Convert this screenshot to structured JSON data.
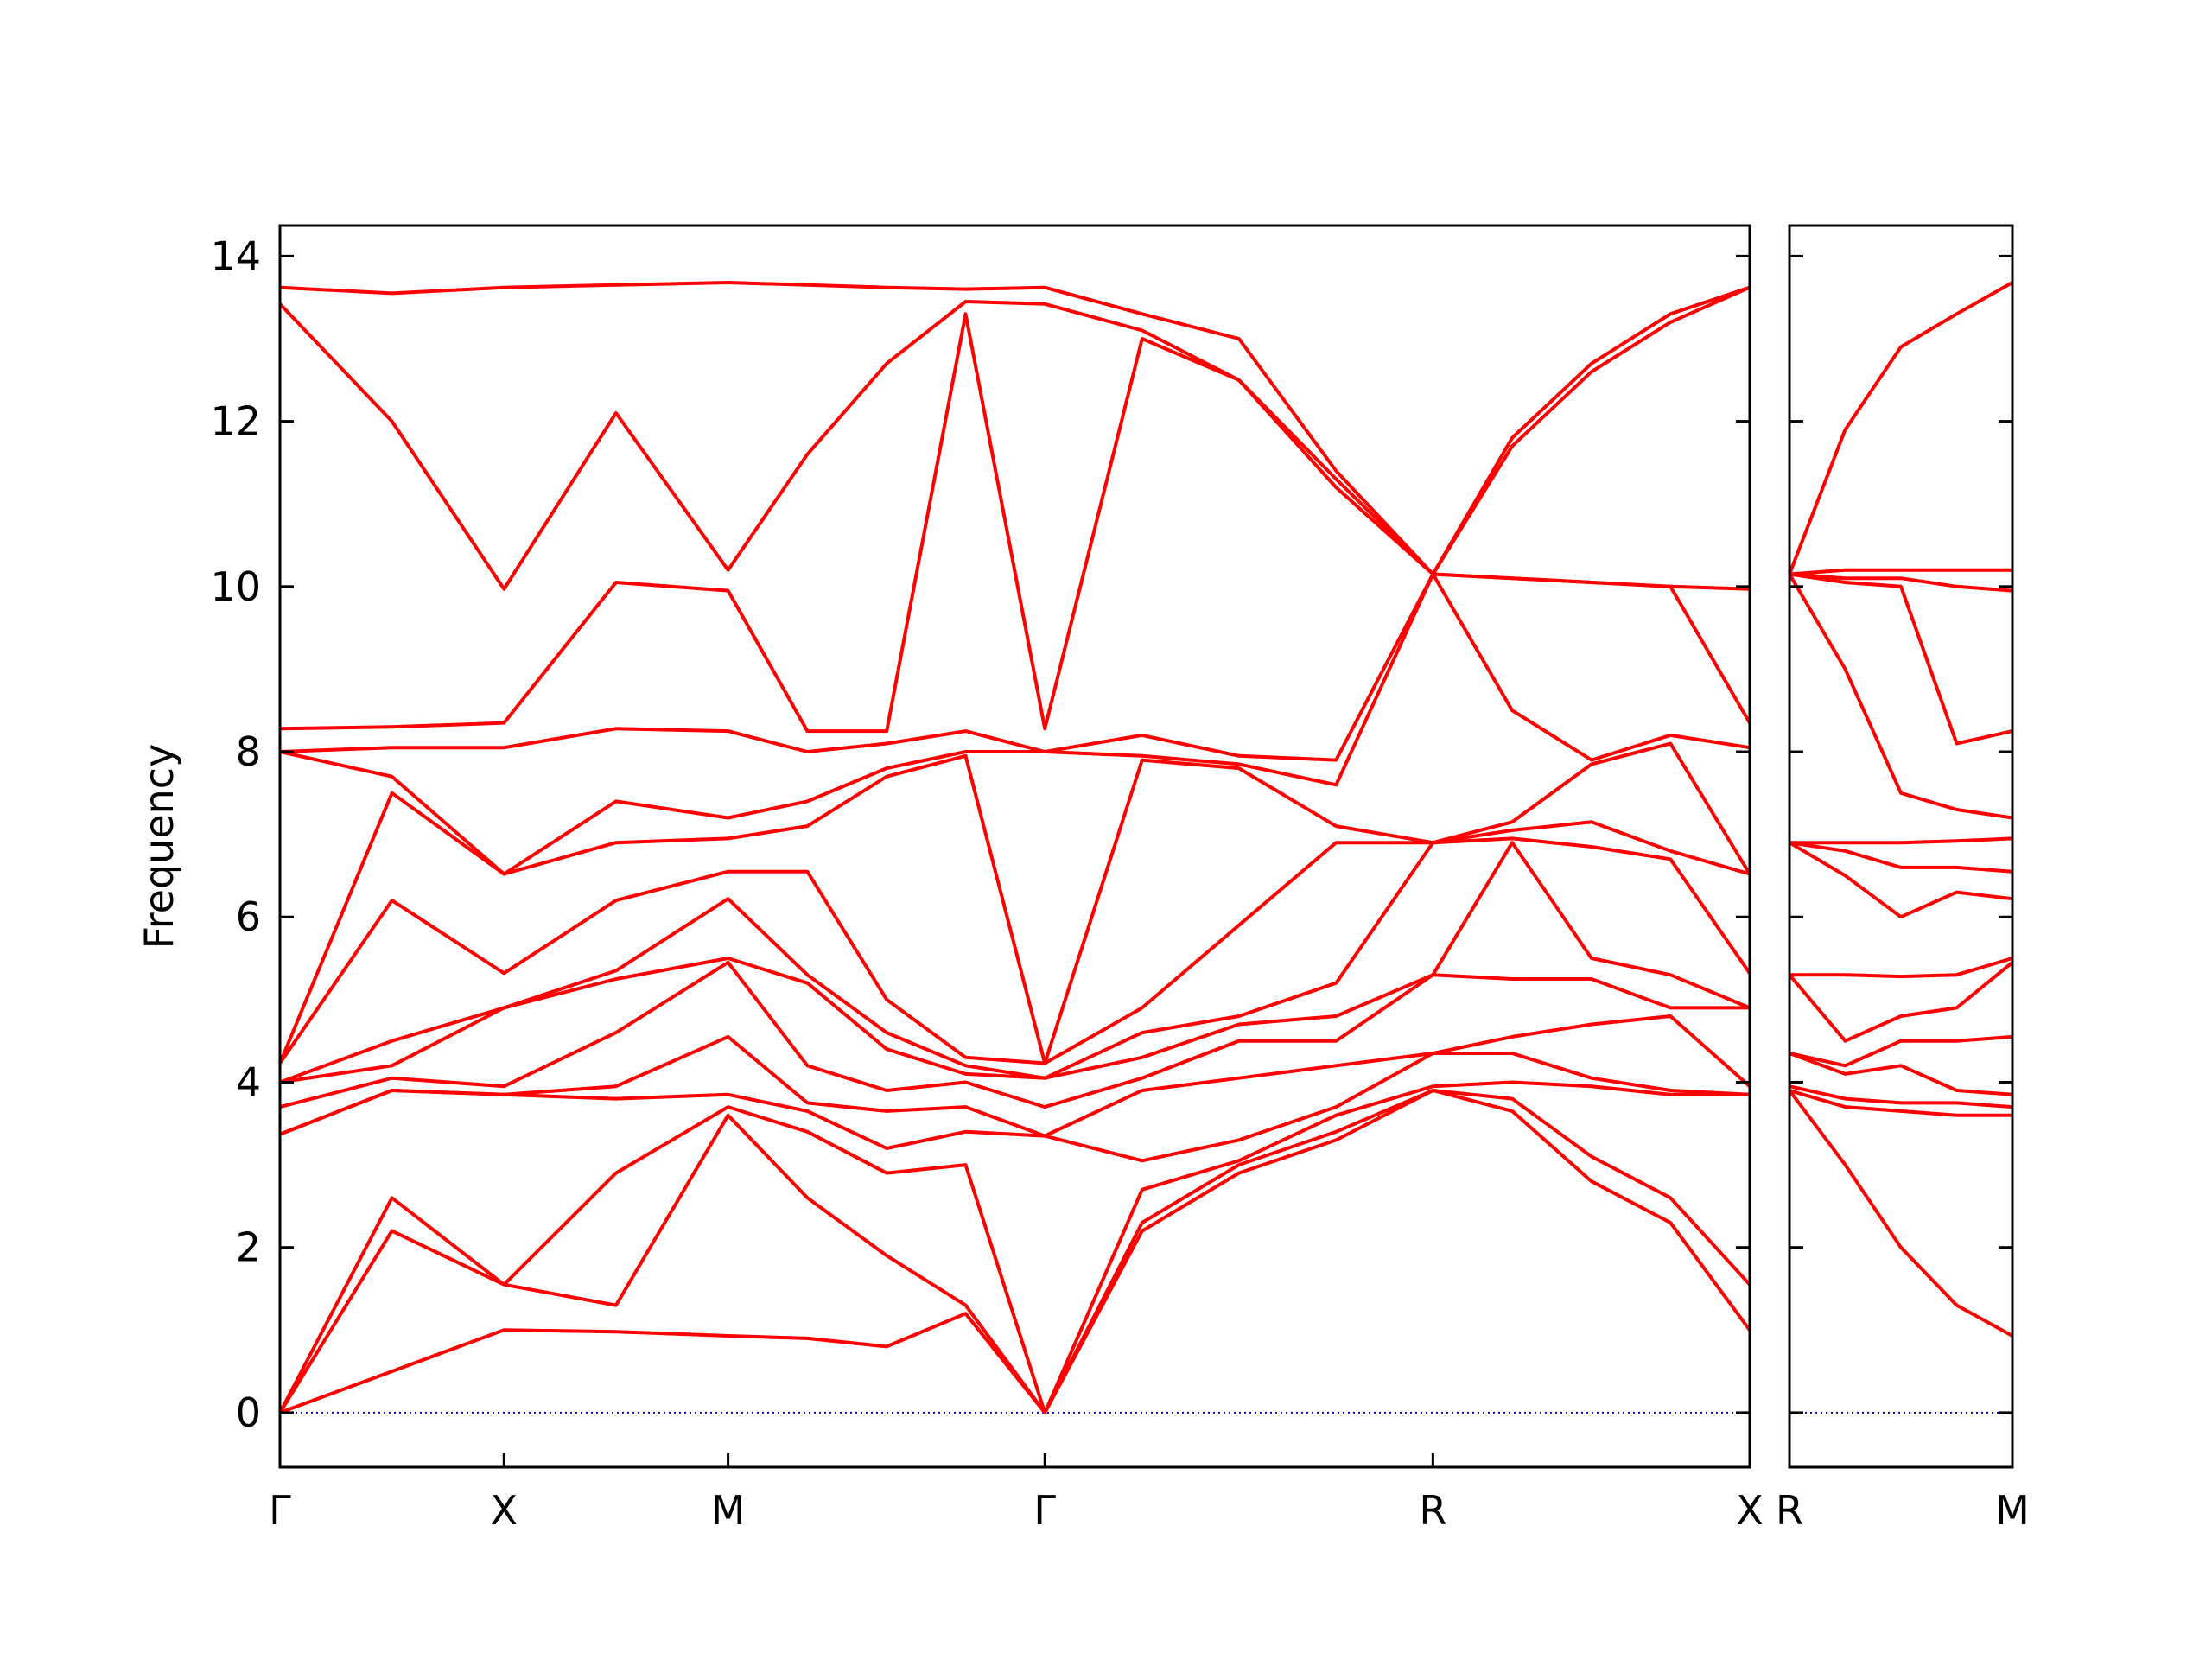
{
  "chart_data": [
    {
      "type": "line",
      "ylabel": "Frequency",
      "color": "#ff0000",
      "hline": 0,
      "hline_color": "#0000cd",
      "xlim": [
        0,
        3.28
      ],
      "ylim": [
        -0.66,
        14.37
      ],
      "yticks": [
        0,
        2,
        4,
        6,
        8,
        10,
        12,
        14
      ],
      "xticks": [
        {
          "value": 0,
          "label": "Γ"
        },
        {
          "value": 0.5,
          "label": "X"
        },
        {
          "value": 1.0,
          "label": "M"
        },
        {
          "value": 1.707,
          "label": "Γ"
        },
        {
          "value": 2.573,
          "label": "R"
        },
        {
          "value": 3.28,
          "label": "X"
        }
      ],
      "x": [
        0,
        0.25,
        0.5,
        0.75,
        1.0,
        1.177,
        1.354,
        1.53,
        1.707,
        1.924,
        2.14,
        2.357,
        2.573,
        2.75,
        2.927,
        3.103,
        3.28
      ],
      "series": [
        {
          "values": [
            0,
            0.5,
            1.0,
            0.98,
            0.93,
            0.9,
            0.8,
            1.2,
            0,
            2.2,
            2.9,
            3.3,
            3.9,
            3.65,
            2.8,
            2.3,
            1.0
          ]
        },
        {
          "values": [
            0,
            2.2,
            1.55,
            1.3,
            3.6,
            2.6,
            1.9,
            1.3,
            0,
            2.3,
            3.0,
            3.4,
            3.9,
            3.8,
            3.1,
            2.6,
            1.55
          ]
        },
        {
          "values": [
            0,
            2.6,
            1.55,
            2.9,
            3.7,
            3.4,
            2.9,
            3.0,
            0,
            2.7,
            3.05,
            3.6,
            3.95,
            4.0,
            3.95,
            3.85,
            3.85
          ]
        },
        {
          "values": [
            3.37,
            3.9,
            3.85,
            3.8,
            3.85,
            3.65,
            3.2,
            3.4,
            3.35,
            3.05,
            3.3,
            3.7,
            4.35,
            4.35,
            4.05,
            3.9,
            3.85
          ]
        },
        {
          "values": [
            3.37,
            3.9,
            3.85,
            3.95,
            4.55,
            3.75,
            3.65,
            3.7,
            3.35,
            3.9,
            4.05,
            4.2,
            4.35,
            4.55,
            4.7,
            4.8,
            3.95
          ]
        },
        {
          "values": [
            3.7,
            4.05,
            3.95,
            4.6,
            5.45,
            4.2,
            3.9,
            4.0,
            3.7,
            4.05,
            4.5,
            4.5,
            5.3,
            5.25,
            5.25,
            4.9,
            4.9
          ]
        },
        {
          "values": [
            4.0,
            4.2,
            4.9,
            5.25,
            5.5,
            5.2,
            4.4,
            4.1,
            4.05,
            4.3,
            4.7,
            4.8,
            5.3,
            6.9,
            5.5,
            5.3,
            4.9
          ]
        },
        {
          "values": [
            4.0,
            4.5,
            4.9,
            5.35,
            6.22,
            5.3,
            4.6,
            4.2,
            4.05,
            4.6,
            4.8,
            5.2,
            6.9,
            6.95,
            6.85,
            6.7,
            5.32
          ]
        },
        {
          "values": [
            4.23,
            6.2,
            5.32,
            6.2,
            6.55,
            6.55,
            5.0,
            4.3,
            4.23,
            4.9,
            5.9,
            6.9,
            6.9,
            7.05,
            7.15,
            6.8,
            6.52
          ]
        },
        {
          "values": [
            4.23,
            7.5,
            6.52,
            6.9,
            6.95,
            7.1,
            7.7,
            7.95,
            4.23,
            7.9,
            7.8,
            7.1,
            6.9,
            7.15,
            7.85,
            8.1,
            6.52
          ]
        },
        {
          "values": [
            8.0,
            7.7,
            6.52,
            7.4,
            7.2,
            7.4,
            7.8,
            8.0,
            8.0,
            7.95,
            7.85,
            7.6,
            10.15,
            8.5,
            7.9,
            8.2,
            8.05
          ]
        },
        {
          "values": [
            8.0,
            8.05,
            8.05,
            8.28,
            8.25,
            8.0,
            8.1,
            8.25,
            8.0,
            8.2,
            7.95,
            7.9,
            10.15,
            10.1,
            10.05,
            10.0,
            8.35
          ]
        },
        {
          "values": [
            8.28,
            8.3,
            8.35,
            10.05,
            9.95,
            8.25,
            8.25,
            13.3,
            8.28,
            13.0,
            12.5,
            11.2,
            10.15,
            10.1,
            10.05,
            10.0,
            9.97
          ]
        },
        {
          "values": [
            13.42,
            12.0,
            9.97,
            12.1,
            10.2,
            11.6,
            12.7,
            13.45,
            13.42,
            13.1,
            12.5,
            11.3,
            10.15,
            11.7,
            12.6,
            13.2,
            13.62
          ]
        },
        {
          "values": [
            13.62,
            13.55,
            13.62,
            13.65,
            13.68,
            13.65,
            13.62,
            13.6,
            13.62,
            13.3,
            13.0,
            11.4,
            10.15,
            11.8,
            12.7,
            13.3,
            13.62
          ]
        }
      ]
    },
    {
      "type": "line",
      "color": "#ff0000",
      "hline": 0,
      "hline_color": "#0000cd",
      "show_ytick_labels": false,
      "xlim": [
        0,
        0.5
      ],
      "ylim": [
        -0.66,
        14.37
      ],
      "yticks": [
        0,
        2,
        4,
        6,
        8,
        10,
        12,
        14
      ],
      "xticks": [
        {
          "value": 0,
          "label": "R"
        },
        {
          "value": 0.5,
          "label": "M"
        }
      ],
      "x": [
        0,
        0.125,
        0.25,
        0.375,
        0.5
      ],
      "series": [
        {
          "values": [
            3.9,
            3.0,
            2.0,
            1.3,
            0.93
          ]
        },
        {
          "values": [
            3.9,
            3.7,
            3.65,
            3.6,
            3.6
          ]
        },
        {
          "values": [
            3.95,
            3.8,
            3.75,
            3.75,
            3.7
          ]
        },
        {
          "values": [
            4.35,
            4.1,
            4.2,
            3.9,
            3.85
          ]
        },
        {
          "values": [
            4.35,
            4.2,
            4.5,
            4.5,
            4.55
          ]
        },
        {
          "values": [
            5.3,
            4.5,
            4.8,
            4.9,
            5.45
          ]
        },
        {
          "values": [
            5.3,
            5.3,
            5.28,
            5.3,
            5.5
          ]
        },
        {
          "values": [
            6.9,
            6.5,
            6.0,
            6.3,
            6.22
          ]
        },
        {
          "values": [
            6.9,
            6.8,
            6.6,
            6.6,
            6.55
          ]
        },
        {
          "values": [
            6.9,
            6.9,
            6.9,
            6.92,
            6.95
          ]
        },
        {
          "values": [
            10.15,
            9.0,
            7.5,
            7.3,
            7.2
          ]
        },
        {
          "values": [
            10.15,
            10.05,
            10.0,
            8.1,
            8.25
          ]
        },
        {
          "values": [
            10.15,
            10.1,
            10.1,
            10.0,
            9.95
          ]
        },
        {
          "values": [
            10.15,
            10.2,
            10.2,
            10.2,
            10.2
          ]
        },
        {
          "values": [
            10.15,
            11.9,
            12.9,
            13.3,
            13.68
          ]
        }
      ]
    }
  ]
}
